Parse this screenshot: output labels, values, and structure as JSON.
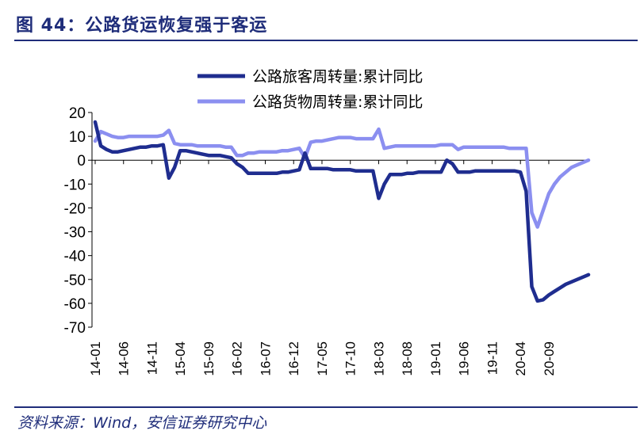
{
  "header": {
    "title": "图 44：公路货运恢复强于客运"
  },
  "footer": {
    "source": "资料来源：Wind，安信证券研究中心"
  },
  "chart_data": {
    "type": "line",
    "title": "",
    "xlabel": "",
    "ylabel": "",
    "ylim": [
      -70,
      20
    ],
    "yticks": [
      20,
      10,
      0,
      -10,
      -20,
      -30,
      -40,
      -50,
      -60,
      -70
    ],
    "grid": false,
    "legend_position": "top-right",
    "x_start": "2014-01",
    "x_tick_labels": [
      "14-01",
      "14-06",
      "14-11",
      "15-04",
      "15-09",
      "16-02",
      "16-07",
      "16-12",
      "17-05",
      "17-10",
      "18-03",
      "18-08",
      "19-01",
      "19-06",
      "19-11",
      "20-04",
      "20-09"
    ],
    "series": [
      {
        "name": "公路旅客周转量:累计同比",
        "color": "#1f2d8f",
        "values": [
          16,
          6,
          4.5,
          3.5,
          3.5,
          4,
          4.5,
          5,
          5.5,
          5.5,
          6,
          6,
          6.5,
          -7.5,
          -3,
          4,
          4,
          3.5,
          3,
          2.5,
          2,
          2,
          2,
          1.5,
          1,
          -1.5,
          -3,
          -5.5,
          -5.5,
          -5.5,
          -5.5,
          -5.5,
          -5.5,
          -5,
          -5,
          -4.5,
          -4,
          3,
          -3.5,
          -3.5,
          -3.5,
          -3.5,
          -4,
          -4,
          -4,
          -4,
          -4.5,
          -4.5,
          -4.5,
          -4.5,
          -16,
          -10,
          -6,
          -6,
          -6,
          -5.5,
          -5.5,
          -5,
          -5,
          -5,
          -5,
          -5,
          0,
          -1.5,
          -5,
          -5,
          -5,
          -4.5,
          -4.5,
          -4.5,
          -4.5,
          -4.5,
          -4.5,
          -4.5,
          -4.5,
          -5,
          -13,
          -53,
          -59,
          -58.5,
          -56.5,
          -55,
          -53.5,
          -52,
          -51,
          -50,
          -49,
          -48
        ]
      },
      {
        "name": "公路货物周转量:累计同比",
        "color": "#8b8ff0",
        "values": [
          8,
          12,
          11,
          10,
          9.5,
          9.5,
          10,
          10,
          10,
          10,
          10,
          10,
          10.5,
          12.5,
          7,
          6.5,
          6.5,
          6.5,
          6,
          6,
          6,
          6,
          6,
          5.5,
          5.5,
          2,
          2,
          3,
          3,
          3.5,
          3.5,
          3.5,
          3.5,
          4,
          4,
          4.5,
          5,
          1,
          7.5,
          8,
          8,
          8.5,
          9,
          9.5,
          9.5,
          9.5,
          9,
          9,
          9,
          9,
          13,
          5,
          5.5,
          6,
          6,
          6,
          6,
          6,
          6,
          6,
          6,
          6.5,
          6.5,
          6.5,
          4.5,
          5.5,
          5.5,
          5.5,
          5.5,
          5.5,
          5.5,
          5.5,
          5.5,
          5,
          5,
          5,
          5,
          -22,
          -28,
          -21,
          -14,
          -10,
          -7,
          -5,
          -3,
          -2,
          -1,
          0
        ]
      }
    ]
  }
}
